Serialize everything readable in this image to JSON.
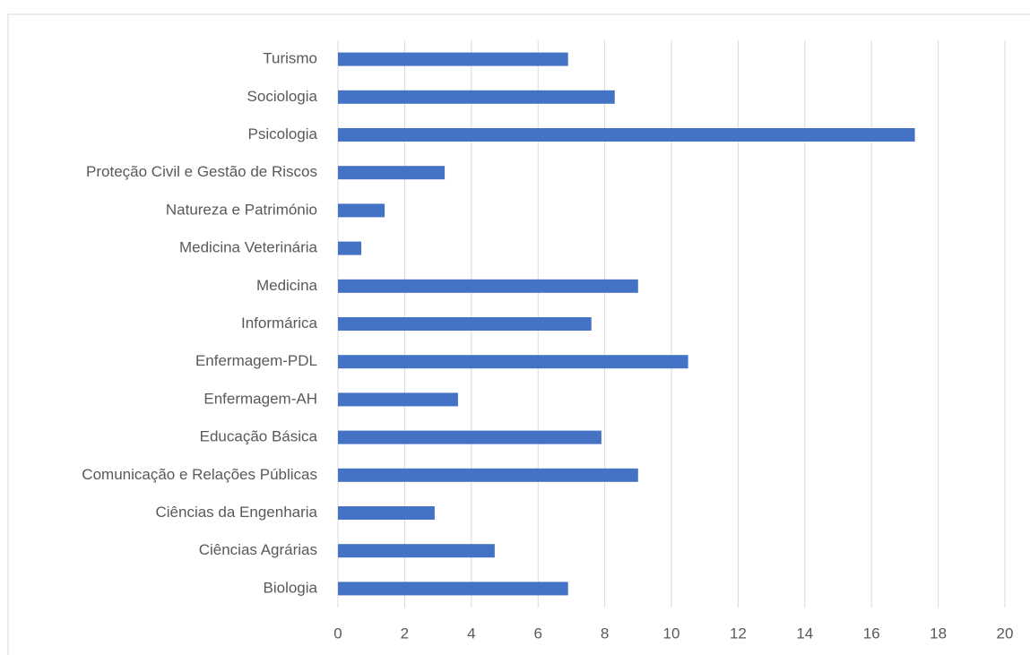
{
  "chart_data": {
    "type": "bar",
    "orientation": "horizontal",
    "categories": [
      "Biologia",
      "Ciências Agrárias",
      "Ciências da Engenharia",
      "Comunicação e Relações Públicas",
      "Educação Básica",
      "Enfermagem-AH",
      "Enfermagem-PDL",
      "Informárica",
      "Medicina",
      "Medicina Veterinária",
      "Natureza e Património",
      "Proteção Civil e Gestão de Riscos",
      "Psicologia",
      "Sociologia",
      "Turismo"
    ],
    "values": [
      6.9,
      4.7,
      2.9,
      9.0,
      7.9,
      3.6,
      10.5,
      7.6,
      9.0,
      0.7,
      1.4,
      3.2,
      17.3,
      8.3,
      6.9
    ],
    "color": "#4472c4",
    "xlim": [
      0,
      20
    ],
    "xticks": [
      0,
      2,
      4,
      6,
      8,
      10,
      12,
      14,
      16,
      18,
      20
    ],
    "grid": true
  }
}
